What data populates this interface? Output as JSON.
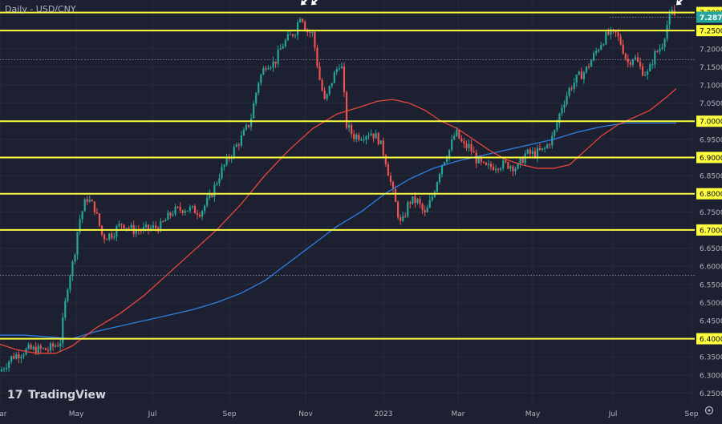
{
  "chart_title": "Daily - USD/CNY",
  "brand": "TradingView",
  "colors": {
    "background": "#1c2030",
    "grid": "#262b3b",
    "up": "#26a69a",
    "down": "#ef5350",
    "ma_fast": "#e8473b",
    "ma_slow": "#2f7fe0",
    "levels": "#ffff40",
    "axis_text": "#b2b5be",
    "price_badge": "#26a69a",
    "arrow": "#ffffff"
  },
  "chart_data": {
    "type": "candlestick",
    "title": "Daily - USD/CNY",
    "ylim": [
      6.22,
      7.33
    ],
    "x_ticks": [
      "Mar",
      "May",
      "Jul",
      "Sep",
      "Nov",
      "2023",
      "Mar",
      "May",
      "Jul",
      "Sep"
    ],
    "y_ticks": [
      "7.3000",
      "7.2500",
      "7.2000",
      "7.1500",
      "7.1000",
      "7.0500",
      "7.0000",
      "6.9500",
      "6.9000",
      "6.8500",
      "6.8000",
      "6.7500",
      "6.7000",
      "6.6500",
      "6.6000",
      "6.5500",
      "6.5000",
      "6.4500",
      "6.4000",
      "6.3500",
      "6.3000",
      "6.2500"
    ],
    "horizontal_levels": [
      7.3,
      7.25,
      7.0,
      6.9,
      6.8,
      6.7,
      6.4
    ],
    "dotted_levels": [
      7.17,
      6.575
    ],
    "last_price": 7.287,
    "last_price_label": "7.2870",
    "close_path": [
      [
        0,
        6.31
      ],
      [
        15,
        6.35
      ],
      [
        35,
        6.37
      ],
      [
        60,
        6.37
      ],
      [
        75,
        6.39
      ],
      [
        85,
        6.56
      ],
      [
        92,
        6.62
      ],
      [
        98,
        6.72
      ],
      [
        108,
        6.79
      ],
      [
        118,
        6.76
      ],
      [
        128,
        6.68
      ],
      [
        140,
        6.69
      ],
      [
        152,
        6.72
      ],
      [
        165,
        6.7
      ],
      [
        180,
        6.7
      ],
      [
        200,
        6.71
      ],
      [
        215,
        6.75
      ],
      [
        230,
        6.76
      ],
      [
        250,
        6.75
      ],
      [
        262,
        6.79
      ],
      [
        275,
        6.86
      ],
      [
        288,
        6.91
      ],
      [
        300,
        6.95
      ],
      [
        312,
        7.0
      ],
      [
        322,
        7.11
      ],
      [
        332,
        7.16
      ],
      [
        342,
        7.16
      ],
      [
        352,
        7.21
      ],
      [
        360,
        7.23
      ],
      [
        368,
        7.25
      ],
      [
        375,
        7.3
      ],
      [
        382,
        7.25
      ],
      [
        390,
        7.24
      ],
      [
        398,
        7.12
      ],
      [
        405,
        7.05
      ],
      [
        415,
        7.12
      ],
      [
        425,
        7.17
      ],
      [
        432,
        6.99
      ],
      [
        440,
        6.96
      ],
      [
        450,
        6.96
      ],
      [
        462,
        6.97
      ],
      [
        472,
        6.95
      ],
      [
        480,
        6.9
      ],
      [
        490,
        6.8
      ],
      [
        500,
        6.71
      ],
      [
        510,
        6.78
      ],
      [
        520,
        6.78
      ],
      [
        530,
        6.74
      ],
      [
        540,
        6.8
      ],
      [
        550,
        6.88
      ],
      [
        560,
        6.92
      ],
      [
        568,
        6.97
      ],
      [
        578,
        6.93
      ],
      [
        585,
        6.93
      ],
      [
        595,
        6.89
      ],
      [
        605,
        6.87
      ],
      [
        620,
        6.88
      ],
      [
        635,
        6.88
      ],
      [
        645,
        6.87
      ],
      [
        655,
        6.91
      ],
      [
        665,
        6.91
      ],
      [
        678,
        6.92
      ],
      [
        690,
        6.96
      ],
      [
        700,
        7.04
      ],
      [
        710,
        7.09
      ],
      [
        720,
        7.12
      ],
      [
        730,
        7.14
      ],
      [
        740,
        7.18
      ],
      [
        750,
        7.22
      ],
      [
        758,
        7.24
      ],
      [
        768,
        7.24
      ],
      [
        775,
        7.21
      ],
      [
        782,
        7.16
      ],
      [
        790,
        7.18
      ],
      [
        800,
        7.14
      ],
      [
        808,
        7.13
      ],
      [
        815,
        7.18
      ],
      [
        825,
        7.21
      ],
      [
        832,
        7.27
      ],
      [
        838,
        7.3
      ],
      [
        842,
        7.287
      ]
    ],
    "ma_fast": [
      [
        0,
        6.385
      ],
      [
        20,
        6.37
      ],
      [
        45,
        6.36
      ],
      [
        70,
        6.36
      ],
      [
        90,
        6.38
      ],
      [
        120,
        6.43
      ],
      [
        150,
        6.47
      ],
      [
        180,
        6.52
      ],
      [
        210,
        6.58
      ],
      [
        240,
        6.64
      ],
      [
        270,
        6.7
      ],
      [
        300,
        6.77
      ],
      [
        330,
        6.85
      ],
      [
        360,
        6.92
      ],
      [
        390,
        6.98
      ],
      [
        420,
        7.02
      ],
      [
        450,
        7.04
      ],
      [
        470,
        7.055
      ],
      [
        490,
        7.06
      ],
      [
        510,
        7.05
      ],
      [
        530,
        7.03
      ],
      [
        550,
        7.0
      ],
      [
        570,
        6.98
      ],
      [
        590,
        6.95
      ],
      [
        610,
        6.92
      ],
      [
        630,
        6.895
      ],
      [
        650,
        6.88
      ],
      [
        670,
        6.87
      ],
      [
        690,
        6.87
      ],
      [
        710,
        6.88
      ],
      [
        730,
        6.92
      ],
      [
        750,
        6.96
      ],
      [
        770,
        6.99
      ],
      [
        790,
        7.01
      ],
      [
        810,
        7.03
      ],
      [
        830,
        7.065
      ],
      [
        843,
        7.09
      ]
    ],
    "ma_slow": [
      [
        0,
        6.41
      ],
      [
        30,
        6.41
      ],
      [
        60,
        6.405
      ],
      [
        90,
        6.4
      ],
      [
        120,
        6.42
      ],
      [
        150,
        6.435
      ],
      [
        180,
        6.45
      ],
      [
        210,
        6.465
      ],
      [
        240,
        6.48
      ],
      [
        270,
        6.5
      ],
      [
        300,
        6.525
      ],
      [
        330,
        6.56
      ],
      [
        360,
        6.61
      ],
      [
        390,
        6.66
      ],
      [
        420,
        6.71
      ],
      [
        450,
        6.75
      ],
      [
        480,
        6.8
      ],
      [
        510,
        6.84
      ],
      [
        540,
        6.87
      ],
      [
        570,
        6.89
      ],
      [
        600,
        6.905
      ],
      [
        630,
        6.92
      ],
      [
        660,
        6.935
      ],
      [
        690,
        6.95
      ],
      [
        720,
        6.97
      ],
      [
        750,
        6.985
      ],
      [
        780,
        6.995
      ],
      [
        810,
        6.995
      ],
      [
        843,
        6.995
      ]
    ],
    "markers": [
      {
        "x": 376,
        "y": 7.32
      },
      {
        "x": 389,
        "y": 7.32
      },
      {
        "x": 844,
        "y": 7.32
      }
    ]
  }
}
